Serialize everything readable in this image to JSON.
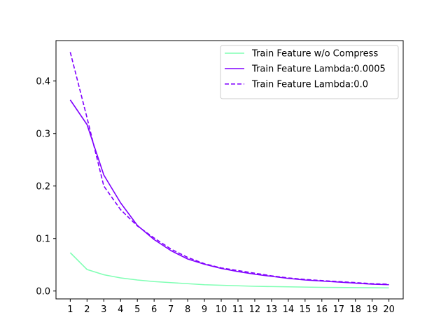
{
  "chart_data": {
    "type": "line",
    "title": "",
    "xlabel": "",
    "ylabel": "",
    "x": [
      1,
      2,
      3,
      4,
      5,
      6,
      7,
      8,
      9,
      10,
      11,
      12,
      13,
      14,
      15,
      16,
      17,
      18,
      19,
      20
    ],
    "xlim": [
      0.15,
      20.85
    ],
    "ylim": [
      -0.015,
      0.477
    ],
    "yticks": [
      0.0,
      0.1,
      0.2,
      0.3,
      0.4
    ],
    "ytick_labels": [
      "0.0",
      "0.1",
      "0.2",
      "0.3",
      "0.4"
    ],
    "xtick_labels": [
      "1",
      "2",
      "3",
      "4",
      "5",
      "6",
      "7",
      "8",
      "9",
      "10",
      "11",
      "12",
      "13",
      "14",
      "15",
      "16",
      "17",
      "18",
      "19",
      "20"
    ],
    "grid": false,
    "legend_position": "top-right",
    "series": [
      {
        "name": "Train Feature w/o Compress",
        "color": "#80ffb4",
        "style": "solid",
        "values": [
          0.073,
          0.041,
          0.031,
          0.025,
          0.021,
          0.018,
          0.016,
          0.014,
          0.012,
          0.011,
          0.01,
          0.009,
          0.0085,
          0.008,
          0.0075,
          0.007,
          0.0068,
          0.0065,
          0.0062,
          0.006
        ]
      },
      {
        "name": "Train Feature Lambda:0.0005",
        "color": "#8000ff",
        "style": "solid",
        "values": [
          0.364,
          0.317,
          0.221,
          0.168,
          0.125,
          0.098,
          0.077,
          0.061,
          0.051,
          0.043,
          0.037,
          0.032,
          0.028,
          0.024,
          0.021,
          0.019,
          0.017,
          0.015,
          0.013,
          0.012
        ]
      },
      {
        "name": "Train Feature Lambda:0.0",
        "color": "#8000ff",
        "style": "dashed",
        "values": [
          0.455,
          0.33,
          0.2,
          0.155,
          0.124,
          0.101,
          0.08,
          0.064,
          0.052,
          0.044,
          0.039,
          0.034,
          0.029,
          0.025,
          0.022,
          0.02,
          0.018,
          0.016,
          0.014,
          0.013
        ]
      }
    ]
  }
}
